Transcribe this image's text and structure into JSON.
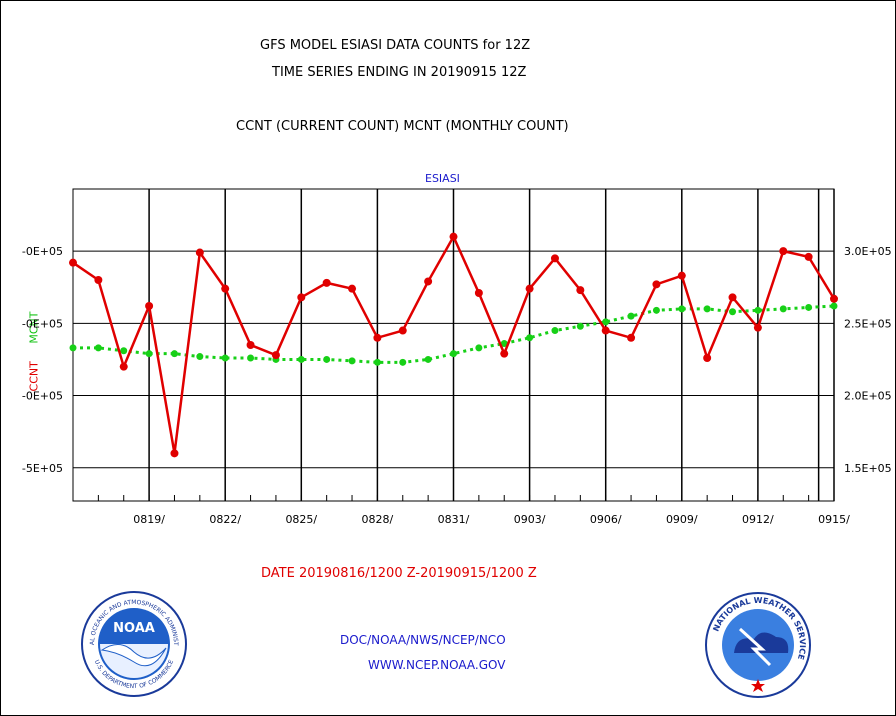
{
  "titles": {
    "line1": "GFS MODEL ESIASI DATA COUNTS for 12Z",
    "line2": "TIME SERIES ENDING IN 20190915 12Z",
    "line3": "CCNT (CURRENT COUNT) MCNT (MONTHLY COUNT)",
    "subtitle": "ESIASI"
  },
  "axis_labels": {
    "left_a": "CCNT",
    "left_b": "MCNT"
  },
  "footer": {
    "date_range": "DATE 20190816/1200 Z-20190915/1200 Z",
    "credit1": "DOC/NOAA/NWS/NCEP/NCO",
    "credit2": "WWW.NCEP.NOAA.GOV"
  },
  "logos": {
    "left": "NOAA",
    "left_ring_top": "NATIONAL OCEANIC AND ATMOSPHERIC ADMINISTRATION",
    "left_ring_bottom": "U.S. DEPARTMENT OF COMMERCE",
    "right_ring": "NATIONAL WEATHER SERVICE"
  },
  "colors": {
    "ccnt": "#e00000",
    "mcnt": "#17d017",
    "accent_text": "#1a1acc"
  },
  "chart_data": {
    "type": "line",
    "x_tick_labels": [
      "0819/",
      "0822/",
      "0825/",
      "0828/",
      "0831/",
      "0903/",
      "0906/",
      "0909/",
      "0912/",
      "0915/"
    ],
    "left_tick_labels": [
      "-0E+05",
      "-0E+05",
      "-0E+05",
      "-5E+05"
    ],
    "right_tick_labels": [
      "3.0E+05",
      "2.5E+05",
      "2.0E+05",
      "1.5E+05"
    ],
    "right_ticks": [
      300000,
      250000,
      200000,
      150000
    ],
    "ylim": [
      127000,
      343000
    ],
    "x_count": 31,
    "series": [
      {
        "name": "CCNT",
        "color": "#e00000",
        "values": [
          292000,
          280000,
          220000,
          262000,
          160000,
          299000,
          274000,
          235000,
          228000,
          268000,
          278000,
          274000,
          240000,
          245000,
          279000,
          310000,
          271000,
          229000,
          274000,
          295000,
          273000,
          245000,
          240000,
          277000,
          283000,
          226000,
          268000,
          247000,
          300000,
          296000,
          267000
        ]
      },
      {
        "name": "MCNT",
        "color": "#17d017",
        "values": [
          233000,
          233000,
          231000,
          229000,
          229000,
          227000,
          226000,
          226000,
          225000,
          225000,
          225000,
          224000,
          223000,
          223000,
          225000,
          229000,
          233000,
          236000,
          240000,
          245000,
          248000,
          251000,
          255000,
          259000,
          260000,
          260000,
          258000,
          259000,
          260000,
          261000,
          262000
        ]
      }
    ]
  }
}
